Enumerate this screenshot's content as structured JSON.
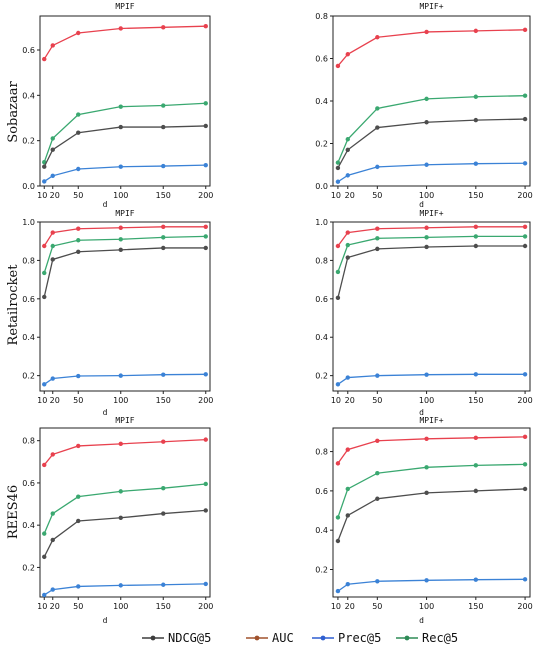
{
  "chart_data": {
    "type": "line",
    "x": [
      10,
      20,
      50,
      100,
      150,
      200
    ],
    "xtick_labels": [
      "10",
      "20",
      "50",
      "100",
      "150",
      "200"
    ],
    "xlabel": "d",
    "legend": {
      "placement": "bottom-center",
      "entries": [
        {
          "name": "NDCG@5",
          "color": "#3d3d3d"
        },
        {
          "name": "AUC",
          "color": "#a0522d"
        },
        {
          "name": "Prec@5",
          "color": "#2f5fd0"
        },
        {
          "name": "Rec@5",
          "color": "#2e8b57"
        }
      ]
    },
    "rows": [
      {
        "label": "Sobazaar",
        "panels": [
          {
            "title": "MPIF",
            "ylim": [
              0,
              0.75
            ],
            "yticks": [
              0.0,
              0.2,
              0.4,
              0.6
            ],
            "ytick_labels": [
              "0.0",
              "0.2",
              "0.4",
              "0.6"
            ],
            "series": [
              {
                "name": "AUC",
                "color": "#e8414e",
                "values": [
                  0.56,
                  0.62,
                  0.675,
                  0.695,
                  0.7,
                  0.705
                ]
              },
              {
                "name": "Rec@5",
                "color": "#3aa870",
                "values": [
                  0.105,
                  0.21,
                  0.315,
                  0.35,
                  0.355,
                  0.365
                ]
              },
              {
                "name": "NDCG@5",
                "color": "#4d4d4d",
                "values": [
                  0.085,
                  0.16,
                  0.235,
                  0.26,
                  0.26,
                  0.265
                ]
              },
              {
                "name": "Prec@5",
                "color": "#3b82d6",
                "values": [
                  0.02,
                  0.045,
                  0.075,
                  0.085,
                  0.088,
                  0.092
                ]
              }
            ]
          },
          {
            "title": "MPIF+",
            "ylim": [
              0,
              0.8
            ],
            "yticks": [
              0.0,
              0.2,
              0.4,
              0.6,
              0.8
            ],
            "ytick_labels": [
              "0.0",
              "0.2",
              "0.4",
              "0.6",
              "0.8"
            ],
            "series": [
              {
                "name": "AUC",
                "color": "#e8414e",
                "values": [
                  0.565,
                  0.62,
                  0.7,
                  0.725,
                  0.73,
                  0.735
                ]
              },
              {
                "name": "Rec@5",
                "color": "#3aa870",
                "values": [
                  0.11,
                  0.22,
                  0.365,
                  0.41,
                  0.42,
                  0.425
                ]
              },
              {
                "name": "NDCG@5",
                "color": "#4d4d4d",
                "values": [
                  0.085,
                  0.17,
                  0.275,
                  0.3,
                  0.31,
                  0.315
                ]
              },
              {
                "name": "Prec@5",
                "color": "#3b82d6",
                "values": [
                  0.02,
                  0.05,
                  0.09,
                  0.1,
                  0.105,
                  0.107
                ]
              }
            ]
          }
        ]
      },
      {
        "label": "Retailrocket",
        "panels": [
          {
            "title": "MPIF",
            "ylim": [
              0.12,
              1.0
            ],
            "yticks": [
              0.2,
              0.4,
              0.6,
              0.8,
              1.0
            ],
            "ytick_labels": [
              "0.2",
              "0.4",
              "0.6",
              "0.8",
              "1.0"
            ],
            "series": [
              {
                "name": "AUC",
                "color": "#e8414e",
                "values": [
                  0.875,
                  0.945,
                  0.965,
                  0.97,
                  0.975,
                  0.975
                ]
              },
              {
                "name": "Rec@5",
                "color": "#3aa870",
                "values": [
                  0.735,
                  0.875,
                  0.905,
                  0.91,
                  0.92,
                  0.925
                ]
              },
              {
                "name": "NDCG@5",
                "color": "#4d4d4d",
                "values": [
                  0.61,
                  0.805,
                  0.845,
                  0.855,
                  0.865,
                  0.865
                ]
              },
              {
                "name": "Prec@5",
                "color": "#3b82d6",
                "values": [
                  0.155,
                  0.185,
                  0.198,
                  0.2,
                  0.205,
                  0.207
                ]
              }
            ]
          },
          {
            "title": "MPIF+",
            "ylim": [
              0.12,
              1.0
            ],
            "yticks": [
              0.2,
              0.4,
              0.6,
              0.8,
              1.0
            ],
            "ytick_labels": [
              "0.2",
              "0.4",
              "0.6",
              "0.8",
              "1.0"
            ],
            "series": [
              {
                "name": "AUC",
                "color": "#e8414e",
                "values": [
                  0.875,
                  0.945,
                  0.965,
                  0.97,
                  0.975,
                  0.975
                ]
              },
              {
                "name": "Rec@5",
                "color": "#3aa870",
                "values": [
                  0.74,
                  0.88,
                  0.915,
                  0.92,
                  0.925,
                  0.925
                ]
              },
              {
                "name": "NDCG@5",
                "color": "#4d4d4d",
                "values": [
                  0.605,
                  0.815,
                  0.86,
                  0.87,
                  0.875,
                  0.875
                ]
              },
              {
                "name": "Prec@5",
                "color": "#3b82d6",
                "values": [
                  0.155,
                  0.19,
                  0.2,
                  0.205,
                  0.207,
                  0.207
                ]
              }
            ]
          }
        ]
      },
      {
        "label": "REES46",
        "panels": [
          {
            "title": "MPIF",
            "ylim": [
              0.06,
              0.86
            ],
            "yticks": [
              0.2,
              0.4,
              0.6,
              0.8
            ],
            "ytick_labels": [
              "0.2",
              "0.4",
              "0.6",
              "0.8"
            ],
            "series": [
              {
                "name": "AUC",
                "color": "#e8414e",
                "values": [
                  0.685,
                  0.735,
                  0.775,
                  0.785,
                  0.795,
                  0.805
                ]
              },
              {
                "name": "Rec@5",
                "color": "#3aa870",
                "values": [
                  0.36,
                  0.455,
                  0.535,
                  0.56,
                  0.575,
                  0.595
                ]
              },
              {
                "name": "NDCG@5",
                "color": "#4d4d4d",
                "values": [
                  0.25,
                  0.33,
                  0.42,
                  0.435,
                  0.455,
                  0.47
                ]
              },
              {
                "name": "Prec@5",
                "color": "#3b82d6",
                "values": [
                  0.07,
                  0.095,
                  0.11,
                  0.115,
                  0.118,
                  0.122
                ]
              }
            ]
          },
          {
            "title": "MPIF+",
            "ylim": [
              0.06,
              0.92
            ],
            "yticks": [
              0.2,
              0.4,
              0.6,
              0.8
            ],
            "ytick_labels": [
              "0.2",
              "0.4",
              "0.6",
              "0.8"
            ],
            "series": [
              {
                "name": "AUC",
                "color": "#e8414e",
                "values": [
                  0.74,
                  0.81,
                  0.855,
                  0.865,
                  0.87,
                  0.875
                ]
              },
              {
                "name": "Rec@5",
                "color": "#3aa870",
                "values": [
                  0.465,
                  0.61,
                  0.69,
                  0.72,
                  0.73,
                  0.735
                ]
              },
              {
                "name": "NDCG@5",
                "color": "#4d4d4d",
                "values": [
                  0.345,
                  0.475,
                  0.56,
                  0.59,
                  0.6,
                  0.61
                ]
              },
              {
                "name": "Prec@5",
                "color": "#3b82d6",
                "values": [
                  0.09,
                  0.125,
                  0.14,
                  0.145,
                  0.148,
                  0.15
                ]
              }
            ]
          }
        ]
      }
    ]
  }
}
